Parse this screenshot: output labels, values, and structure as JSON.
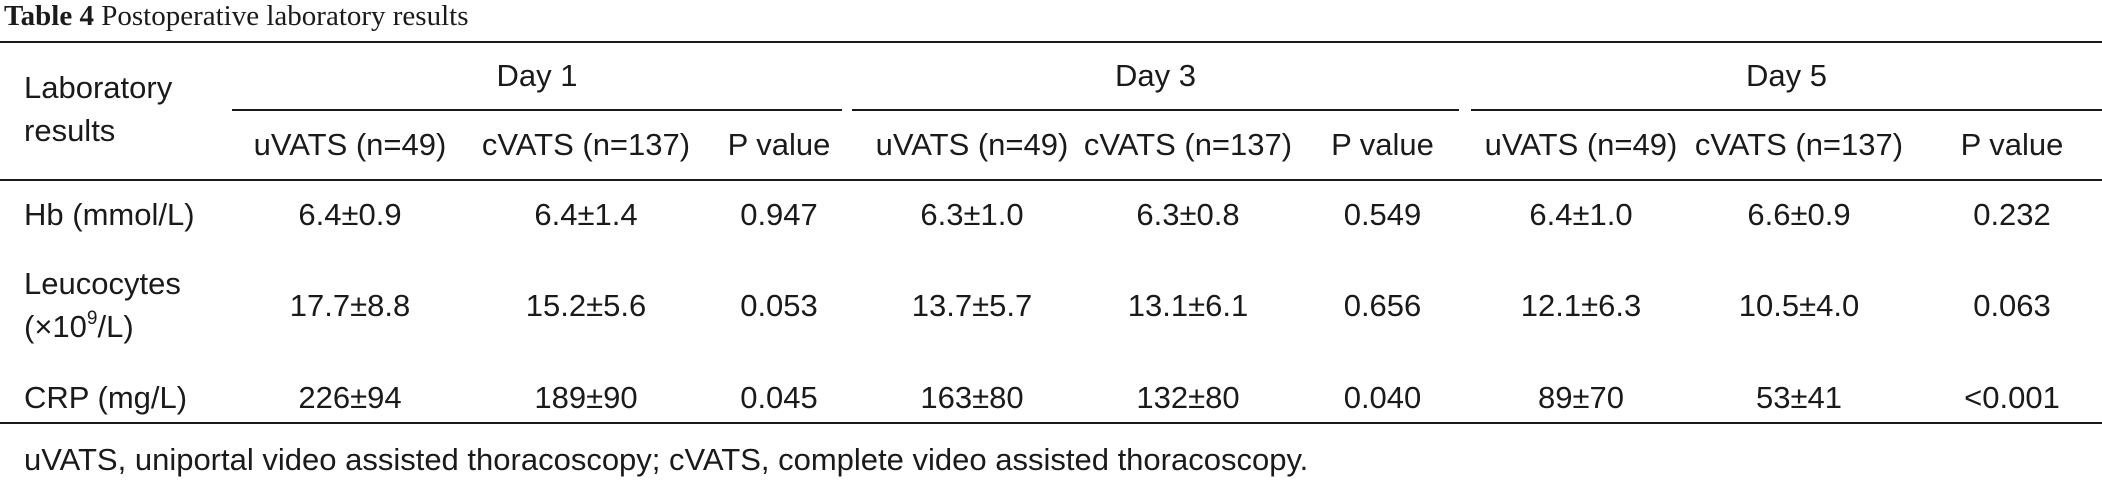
{
  "caption": {
    "label": "Table 4",
    "title": "Postoperative laboratory results"
  },
  "header": {
    "row_label_line1": "Laboratory",
    "row_label_line2": "results",
    "groups": [
      "Day 1",
      "Day 3",
      "Day 5"
    ],
    "subcolumns": [
      "uVATS (n=49)",
      "cVATS (n=137)",
      "P value",
      "uVATS (n=49)",
      "cVATS (n=137)",
      "P value",
      "uVATS (n=49)",
      "cVATS (n=137)",
      "P value"
    ]
  },
  "rows": [
    {
      "label": "Hb (mmol/L)",
      "values": [
        "6.4±0.9",
        "6.4±1.4",
        "0.947",
        "6.3±1.0",
        "6.3±0.8",
        "0.549",
        "6.4±1.0",
        "6.6±0.9",
        "0.232"
      ]
    },
    {
      "label_line1": "Leucocytes",
      "label_line2_pre": "(×10",
      "label_line2_sup": "9",
      "label_line2_post": "/L)",
      "values": [
        "17.7±8.8",
        "15.2±5.6",
        "0.053",
        "13.7±5.7",
        "13.1±6.1",
        "0.656",
        "12.1±6.3",
        "10.5±4.0",
        "0.063"
      ]
    },
    {
      "label": "CRP (mg/L)",
      "values": [
        "226±94",
        "189±90",
        "0.045",
        "163±80",
        "132±80",
        "0.040",
        "89±70",
        "53±41",
        "<0.001"
      ]
    }
  ],
  "footnote": "uVATS, uniportal video assisted thoracoscopy; cVATS, complete video assisted thoracoscopy."
}
